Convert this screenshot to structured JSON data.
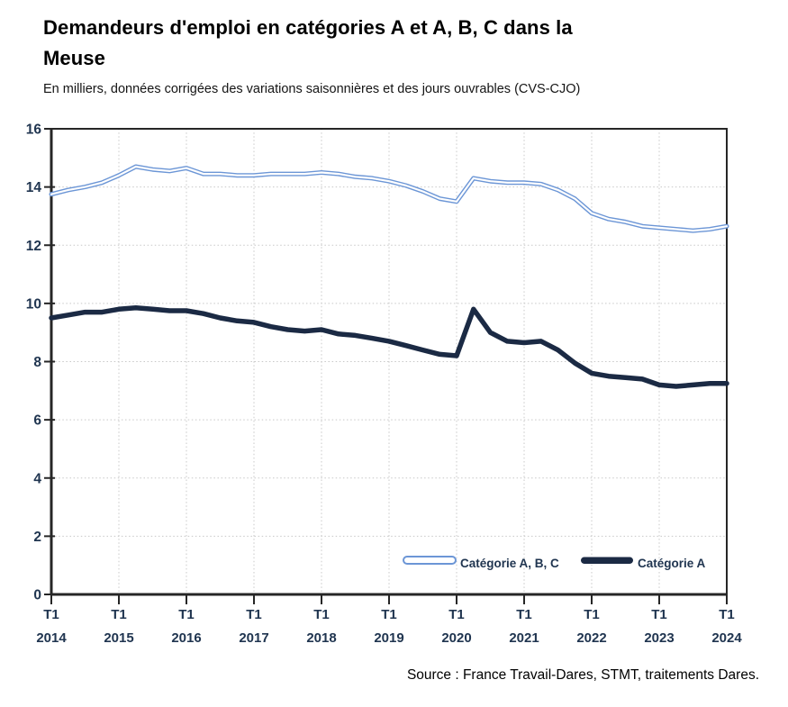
{
  "header": {
    "title_line1": "Demandeurs d'emploi en catégories A et A, B, C dans la",
    "title_line2": "Meuse",
    "subtitle": "En milliers, données corrigées des variations saisonnières et des jours ouvrables (CVS-CJO)"
  },
  "footer": {
    "source": "Source : France Travail-Dares, STMT, traitements Dares."
  },
  "colors": {
    "series_abc_blue": "#6C96D6",
    "series_a_navy": "#1B2A44",
    "grid_gray": "#C8C8C8",
    "axis_dark": "#262626",
    "tick_text_navy": "#203550",
    "background": "#FFFFFF"
  },
  "chart_data": {
    "type": "line",
    "title": "Demandeurs d'emploi en catégories A et A, B, C dans la Meuse",
    "subtitle": "En milliers, données corrigées des variations saisonnières et des jours ouvrables (CVS-CJO)",
    "unit": "milliers",
    "grid": true,
    "legend_position": "inside-bottom-right",
    "ylim": [
      0,
      16
    ],
    "y_ticks": [
      0,
      2,
      4,
      6,
      8,
      10,
      12,
      14,
      16
    ],
    "x_tick_prefix": "T1",
    "x_ticks": [
      "2014",
      "2015",
      "2016",
      "2017",
      "2018",
      "2019",
      "2020",
      "2021",
      "2022",
      "2023",
      "2024"
    ],
    "x": [
      "2014-T1",
      "2014-T2",
      "2014-T3",
      "2014-T4",
      "2015-T1",
      "2015-T2",
      "2015-T3",
      "2015-T4",
      "2016-T1",
      "2016-T2",
      "2016-T3",
      "2016-T4",
      "2017-T1",
      "2017-T2",
      "2017-T3",
      "2017-T4",
      "2018-T1",
      "2018-T2",
      "2018-T3",
      "2018-T4",
      "2019-T1",
      "2019-T2",
      "2019-T3",
      "2019-T4",
      "2020-T1",
      "2020-T2",
      "2020-T3",
      "2020-T4",
      "2021-T1",
      "2021-T2",
      "2021-T3",
      "2021-T4",
      "2022-T1",
      "2022-T2",
      "2022-T3",
      "2022-T4",
      "2023-T1",
      "2023-T2",
      "2023-T3",
      "2023-T4",
      "2024-T1"
    ],
    "series": [
      {
        "name": "Catégorie A, B, C",
        "color": "#6C96D6",
        "style": "double-line",
        "values": [
          13.75,
          13.9,
          14.0,
          14.15,
          14.4,
          14.7,
          14.6,
          14.55,
          14.65,
          14.45,
          14.45,
          14.4,
          14.4,
          14.45,
          14.45,
          14.45,
          14.5,
          14.45,
          14.35,
          14.3,
          14.2,
          14.05,
          13.85,
          13.6,
          13.5,
          14.3,
          14.2,
          14.15,
          14.15,
          14.1,
          13.9,
          13.6,
          13.1,
          12.9,
          12.8,
          12.65,
          12.6,
          12.55,
          12.5,
          12.55,
          12.65
        ]
      },
      {
        "name": "Catégorie A",
        "color": "#1B2A44",
        "style": "thick-solid",
        "values": [
          9.5,
          9.6,
          9.7,
          9.7,
          9.8,
          9.85,
          9.8,
          9.75,
          9.75,
          9.65,
          9.5,
          9.4,
          9.35,
          9.2,
          9.1,
          9.05,
          9.1,
          8.95,
          8.9,
          8.8,
          8.7,
          8.55,
          8.4,
          8.25,
          8.2,
          9.8,
          9.0,
          8.7,
          8.65,
          8.7,
          8.4,
          7.95,
          7.6,
          7.5,
          7.45,
          7.4,
          7.2,
          7.15,
          7.2,
          7.25,
          7.25
        ]
      }
    ]
  }
}
